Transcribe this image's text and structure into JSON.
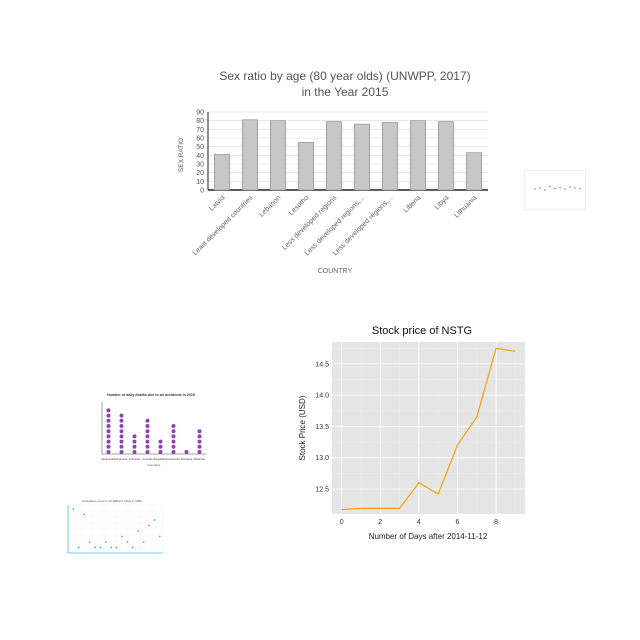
{
  "chart_data": [
    {
      "type": "bar",
      "title": "Sex ratio by age (80 year olds) (UNWPP, 2017)",
      "subtitle": "in the Year 2015",
      "xlabel": "COUNTRY",
      "ylabel": "SEX RATIO",
      "ylim": [
        0,
        90
      ],
      "yticks": [
        0,
        10,
        20,
        30,
        40,
        50,
        60,
        70,
        80,
        90
      ],
      "grid": true,
      "categories": [
        "Latvia",
        "Least developed countries",
        "Lebanon",
        "Lesotho",
        "Less developed regions",
        "Less developed regions,...",
        "Less developed regions,...",
        "Liberia",
        "Libya",
        "Lithuania"
      ],
      "values": [
        41,
        81,
        80,
        55,
        79,
        76,
        78,
        80,
        79,
        43
      ],
      "color": "#c8c8c8"
    },
    {
      "type": "line",
      "title": "Stock price of NSTG",
      "xlabel": "Number of Days after 2014-11-12",
      "ylabel": "Stock Price (USD)",
      "xlim": [
        -0.5,
        9.5
      ],
      "ylim": [
        12.1,
        14.85
      ],
      "xticks": [
        0,
        2,
        4,
        6,
        8
      ],
      "yticks": [
        12.5,
        13.0,
        13.5,
        14.0,
        14.5
      ],
      "x": [
        0,
        1,
        2,
        3,
        4,
        5,
        6,
        7,
        8,
        9
      ],
      "y": [
        12.17,
        12.19,
        12.19,
        12.19,
        12.6,
        12.42,
        13.2,
        13.65,
        14.75,
        14.7
      ],
      "color": "#f4a300",
      "background": "#e5e5e5"
    },
    {
      "type": "scatter",
      "title": "",
      "note": "tiny unreadable thumbnail scatter chart",
      "x": [
        1,
        2,
        3,
        4,
        5,
        6,
        7,
        8,
        9,
        10
      ],
      "y": [
        3,
        3.2,
        2.8,
        3.5,
        3.1,
        3.3,
        3.0,
        3.4,
        3.2,
        3.1
      ]
    },
    {
      "type": "scatter",
      "title": "Number of daily deaths due to air accidents in 2015",
      "xlabel": "Countries",
      "categories": [
        "Saudi Arabia",
        "Argentina",
        "Indonesia",
        "Australia",
        "Bangladesh",
        "Cambodia",
        "Botswana",
        "Bahamas"
      ],
      "values": [
        9,
        8,
        4,
        7,
        3,
        6,
        1,
        5
      ],
      "color": "#8e44ad"
    },
    {
      "type": "scatter",
      "title": "Population count in 15-Millions Cities in 1950",
      "x": [
        1,
        2,
        3,
        4,
        5,
        6,
        7,
        8,
        9,
        10,
        11,
        12,
        13,
        14,
        15,
        16,
        17
      ],
      "y": [
        8,
        1,
        7,
        2,
        1,
        1,
        2,
        1,
        1,
        3,
        2,
        1,
        4,
        2,
        5,
        6,
        3
      ],
      "colors": [
        "#e67e22",
        "#2ecc71"
      ]
    }
  ]
}
